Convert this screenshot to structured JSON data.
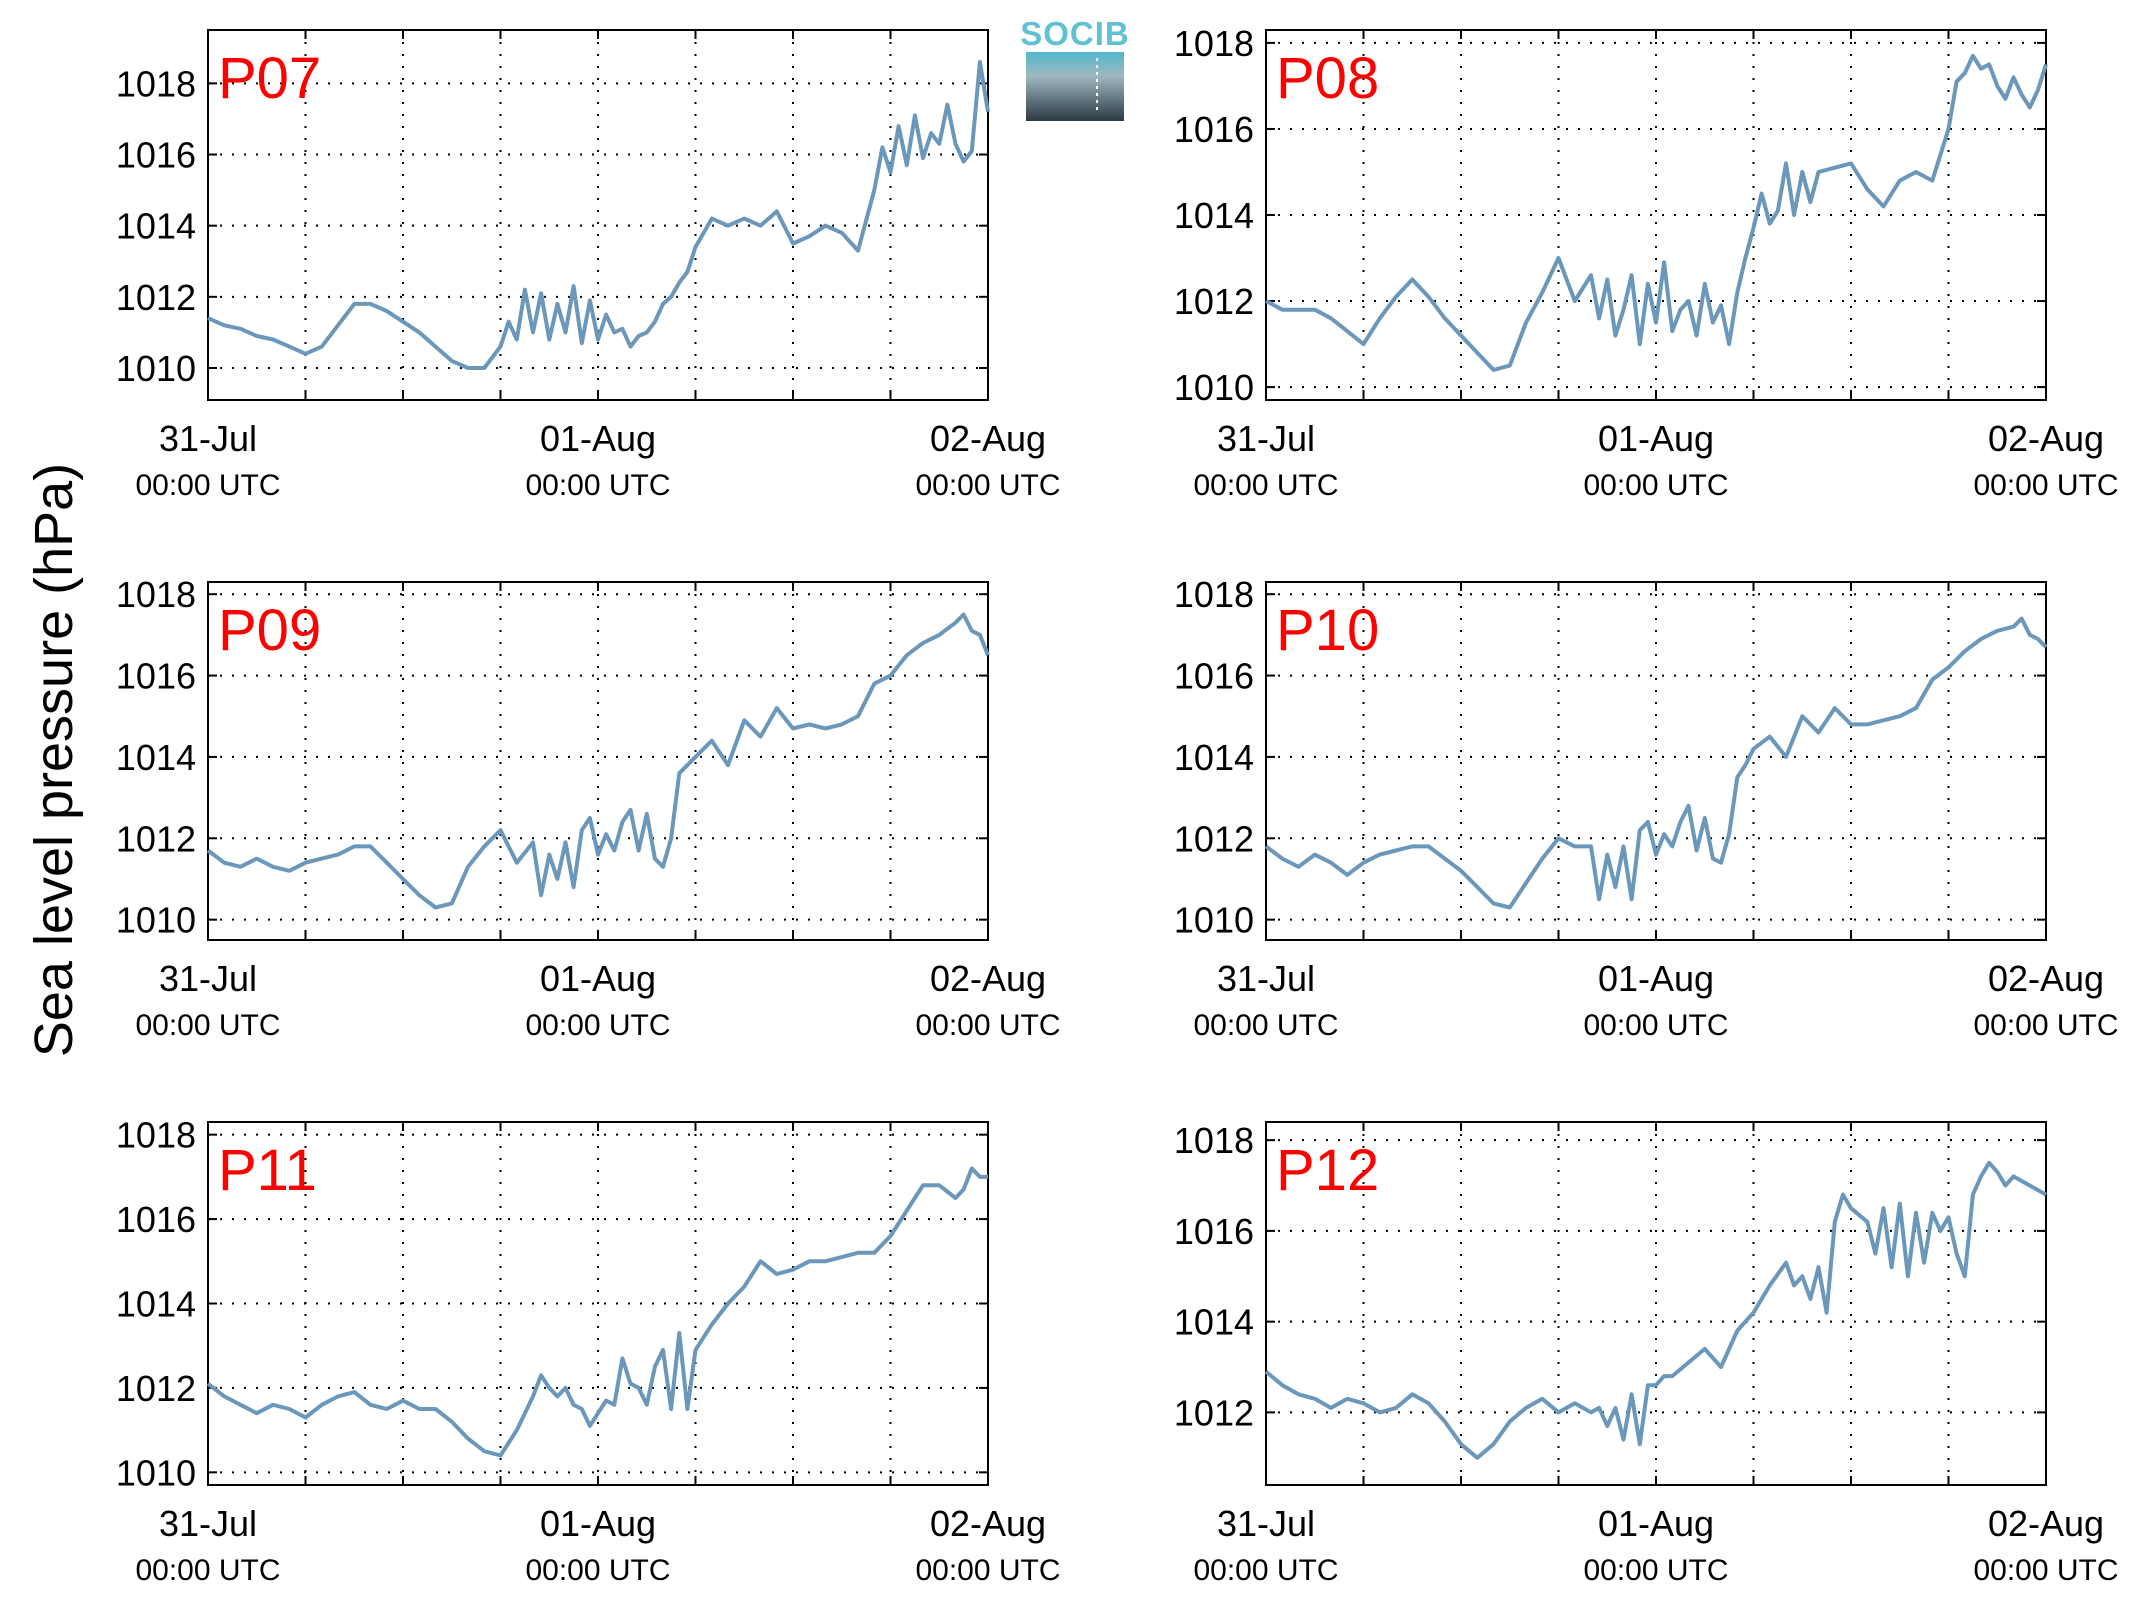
{
  "figure": {
    "ylabel": "Sea level pressure (hPa)",
    "logo_text": "SOCIB",
    "colors": {
      "series": "#6a97ba",
      "panel_label": "#ff0000",
      "logo_top": "#5fc1d4",
      "logo_bottom": "#2b3a44"
    }
  },
  "chart_data": [
    {
      "type": "line",
      "panel_label": "P07",
      "ylim": [
        1009.1,
        1019.5
      ],
      "yticks": [
        1010,
        1012,
        1014,
        1016,
        1018
      ],
      "xlim": [
        0,
        48
      ],
      "xticks": [
        {
          "top": "31-Jul",
          "bottom": "00:00 UTC"
        },
        {
          "top": "01-Aug",
          "bottom": "00:00 UTC"
        },
        {
          "top": "02-Aug",
          "bottom": "00:00 UTC"
        }
      ],
      "grid": true,
      "series": [
        {
          "x": [
            0,
            1,
            2,
            3,
            4,
            5,
            6,
            7,
            8,
            9,
            10,
            11,
            12,
            13,
            14,
            15,
            16,
            17,
            18,
            18.5,
            19,
            19.5,
            20,
            20.5,
            21,
            21.5,
            22,
            22.5,
            23,
            23.5,
            24,
            24.5,
            25,
            25.5,
            26,
            26.5,
            27,
            27.5,
            28,
            28.5,
            29,
            29.5,
            30,
            31,
            32,
            33,
            34,
            35,
            36,
            37,
            38,
            39,
            40,
            41,
            41.5,
            42,
            42.5,
            43,
            43.5,
            44,
            44.5,
            45,
            45.5,
            46,
            46.5,
            47,
            47.5,
            48
          ],
          "y": [
            1011.4,
            1011.2,
            1011.1,
            1010.9,
            1010.8,
            1010.6,
            1010.4,
            1010.6,
            1011.2,
            1011.8,
            1011.8,
            1011.6,
            1011.3,
            1011.0,
            1010.6,
            1010.2,
            1010.0,
            1010.0,
            1010.6,
            1011.3,
            1010.8,
            1012.2,
            1011.0,
            1012.1,
            1010.8,
            1011.8,
            1011.0,
            1012.3,
            1010.7,
            1011.9,
            1010.8,
            1011.5,
            1011.0,
            1011.1,
            1010.6,
            1010.9,
            1011.0,
            1011.3,
            1011.8,
            1012.0,
            1012.4,
            1012.7,
            1013.4,
            1014.2,
            1014.0,
            1014.2,
            1014.0,
            1014.4,
            1013.5,
            1013.7,
            1014.0,
            1013.8,
            1013.3,
            1015.0,
            1016.2,
            1015.5,
            1016.8,
            1015.7,
            1017.1,
            1015.9,
            1016.6,
            1016.3,
            1017.4,
            1016.3,
            1015.8,
            1016.1,
            1018.6,
            1017.2
          ]
        }
      ]
    },
    {
      "type": "line",
      "panel_label": "P08",
      "ylim": [
        1009.7,
        1018.3
      ],
      "yticks": [
        1010,
        1012,
        1014,
        1016,
        1018
      ],
      "xlim": [
        0,
        48
      ],
      "xticks": [
        {
          "top": "31-Jul",
          "bottom": "00:00 UTC"
        },
        {
          "top": "01-Aug",
          "bottom": "00:00 UTC"
        },
        {
          "top": "02-Aug",
          "bottom": "00:00 UTC"
        }
      ],
      "grid": true,
      "series": [
        {
          "x": [
            0,
            1,
            2,
            3,
            4,
            5,
            6,
            7,
            8,
            9,
            10,
            11,
            12,
            13,
            14,
            15,
            16,
            17,
            18,
            19,
            20,
            20.5,
            21,
            21.5,
            22,
            22.5,
            23,
            23.5,
            24,
            24.5,
            25,
            25.5,
            26,
            26.5,
            27,
            27.5,
            28,
            28.5,
            29,
            29.5,
            30,
            30.5,
            31,
            31.5,
            32,
            32.5,
            33,
            33.5,
            34,
            35,
            36,
            37,
            38,
            39,
            40,
            41,
            42,
            42.5,
            43,
            43.5,
            44,
            44.5,
            45,
            45.5,
            46,
            46.5,
            47,
            47.5,
            48
          ],
          "y": [
            1012.0,
            1011.8,
            1011.8,
            1011.8,
            1011.6,
            1011.3,
            1011.0,
            1011.6,
            1012.1,
            1012.5,
            1012.1,
            1011.6,
            1011.2,
            1010.8,
            1010.4,
            1010.5,
            1011.5,
            1012.2,
            1013.0,
            1012.0,
            1012.6,
            1011.6,
            1012.5,
            1011.2,
            1011.8,
            1012.6,
            1011.0,
            1012.4,
            1011.5,
            1012.9,
            1011.3,
            1011.8,
            1012.0,
            1011.2,
            1012.4,
            1011.5,
            1011.9,
            1011.0,
            1012.2,
            1013.0,
            1013.7,
            1014.5,
            1013.8,
            1014.1,
            1015.2,
            1014.0,
            1015.0,
            1014.3,
            1015.0,
            1015.1,
            1015.2,
            1014.6,
            1014.2,
            1014.8,
            1015.0,
            1014.8,
            1016.0,
            1017.1,
            1017.3,
            1017.7,
            1017.4,
            1017.5,
            1017.0,
            1016.7,
            1017.2,
            1016.8,
            1016.5,
            1016.9,
            1017.5
          ]
        }
      ]
    },
    {
      "type": "line",
      "panel_label": "P09",
      "ylim": [
        1009.5,
        1018.3
      ],
      "yticks": [
        1010,
        1012,
        1014,
        1016,
        1018
      ],
      "xlim": [
        0,
        48
      ],
      "xticks": [
        {
          "top": "31-Jul",
          "bottom": "00:00 UTC"
        },
        {
          "top": "01-Aug",
          "bottom": "00:00 UTC"
        },
        {
          "top": "02-Aug",
          "bottom": "00:00 UTC"
        }
      ],
      "grid": true,
      "series": [
        {
          "x": [
            0,
            1,
            2,
            3,
            4,
            5,
            6,
            7,
            8,
            9,
            10,
            11,
            12,
            13,
            14,
            15,
            16,
            17,
            18,
            19,
            20,
            20.5,
            21,
            21.5,
            22,
            22.5,
            23,
            23.5,
            24,
            24.5,
            25,
            25.5,
            26,
            26.5,
            27,
            27.5,
            28,
            28.5,
            29,
            29.5,
            30,
            31,
            32,
            33,
            34,
            35,
            36,
            37,
            38,
            39,
            40,
            41,
            42,
            43,
            44,
            45,
            46,
            46.5,
            47,
            47.5,
            48
          ],
          "y": [
            1011.7,
            1011.4,
            1011.3,
            1011.5,
            1011.3,
            1011.2,
            1011.4,
            1011.5,
            1011.6,
            1011.8,
            1011.8,
            1011.4,
            1011.0,
            1010.6,
            1010.3,
            1010.4,
            1011.3,
            1011.8,
            1012.2,
            1011.4,
            1011.9,
            1010.6,
            1011.6,
            1011.0,
            1011.9,
            1010.8,
            1012.2,
            1012.5,
            1011.6,
            1012.1,
            1011.7,
            1012.4,
            1012.7,
            1011.7,
            1012.6,
            1011.5,
            1011.3,
            1012.0,
            1013.6,
            1013.8,
            1014.0,
            1014.4,
            1013.8,
            1014.9,
            1014.5,
            1015.2,
            1014.7,
            1014.8,
            1014.7,
            1014.8,
            1015.0,
            1015.8,
            1016.0,
            1016.5,
            1016.8,
            1017.0,
            1017.3,
            1017.5,
            1017.1,
            1017.0,
            1016.5
          ]
        }
      ]
    },
    {
      "type": "line",
      "panel_label": "P10",
      "ylim": [
        1009.5,
        1018.3
      ],
      "yticks": [
        1010,
        1012,
        1014,
        1016,
        1018
      ],
      "xlim": [
        0,
        48
      ],
      "xticks": [
        {
          "top": "31-Jul",
          "bottom": "00:00 UTC"
        },
        {
          "top": "01-Aug",
          "bottom": "00:00 UTC"
        },
        {
          "top": "02-Aug",
          "bottom": "00:00 UTC"
        }
      ],
      "grid": true,
      "series": [
        {
          "x": [
            0,
            1,
            2,
            3,
            4,
            5,
            6,
            7,
            8,
            9,
            10,
            11,
            12,
            13,
            14,
            15,
            16,
            17,
            18,
            19,
            20,
            20.5,
            21,
            21.5,
            22,
            22.5,
            23,
            23.5,
            24,
            24.5,
            25,
            25.5,
            26,
            26.5,
            27,
            27.5,
            28,
            28.5,
            29,
            29.5,
            30,
            31,
            32,
            33,
            34,
            35,
            36,
            37,
            38,
            39,
            40,
            41,
            42,
            43,
            44,
            45,
            46,
            46.5,
            47,
            47.5,
            48
          ],
          "y": [
            1011.8,
            1011.5,
            1011.3,
            1011.6,
            1011.4,
            1011.1,
            1011.4,
            1011.6,
            1011.7,
            1011.8,
            1011.8,
            1011.5,
            1011.2,
            1010.8,
            1010.4,
            1010.3,
            1010.9,
            1011.5,
            1012.0,
            1011.8,
            1011.8,
            1010.5,
            1011.6,
            1010.8,
            1011.8,
            1010.5,
            1012.2,
            1012.4,
            1011.6,
            1012.1,
            1011.8,
            1012.4,
            1012.8,
            1011.7,
            1012.5,
            1011.5,
            1011.4,
            1012.1,
            1013.5,
            1013.8,
            1014.2,
            1014.5,
            1014.0,
            1015.0,
            1014.6,
            1015.2,
            1014.8,
            1014.8,
            1014.9,
            1015.0,
            1015.2,
            1015.9,
            1016.2,
            1016.6,
            1016.9,
            1017.1,
            1017.2,
            1017.4,
            1017.0,
            1016.9,
            1016.7
          ]
        }
      ]
    },
    {
      "type": "line",
      "panel_label": "P11",
      "ylim": [
        1009.7,
        1018.3
      ],
      "yticks": [
        1010,
        1012,
        1014,
        1016,
        1018
      ],
      "xlim": [
        0,
        48
      ],
      "xticks": [
        {
          "top": "31-Jul",
          "bottom": "00:00 UTC"
        },
        {
          "top": "01-Aug",
          "bottom": "00:00 UTC"
        },
        {
          "top": "02-Aug",
          "bottom": "00:00 UTC"
        }
      ],
      "grid": true,
      "series": [
        {
          "x": [
            0,
            1,
            2,
            3,
            4,
            5,
            6,
            7,
            8,
            9,
            10,
            11,
            12,
            13,
            14,
            15,
            16,
            17,
            18,
            19,
            20,
            20.5,
            21,
            21.5,
            22,
            22.5,
            23,
            23.5,
            24,
            24.5,
            25,
            25.5,
            26,
            26.5,
            27,
            27.5,
            28,
            28.5,
            29,
            29.5,
            30,
            31,
            32,
            33,
            34,
            35,
            36,
            37,
            38,
            39,
            40,
            41,
            42,
            43,
            44,
            45,
            46,
            46.5,
            47,
            47.5,
            48
          ],
          "y": [
            1012.1,
            1011.8,
            1011.6,
            1011.4,
            1011.6,
            1011.5,
            1011.3,
            1011.6,
            1011.8,
            1011.9,
            1011.6,
            1011.5,
            1011.7,
            1011.5,
            1011.5,
            1011.2,
            1010.8,
            1010.5,
            1010.4,
            1011.0,
            1011.8,
            1012.3,
            1012.0,
            1011.8,
            1012.0,
            1011.6,
            1011.5,
            1011.1,
            1011.4,
            1011.7,
            1011.6,
            1012.7,
            1012.1,
            1012.0,
            1011.6,
            1012.5,
            1012.9,
            1011.5,
            1013.3,
            1011.5,
            1012.9,
            1013.5,
            1014.0,
            1014.4,
            1015.0,
            1014.7,
            1014.8,
            1015.0,
            1015.0,
            1015.1,
            1015.2,
            1015.2,
            1015.6,
            1016.2,
            1016.8,
            1016.8,
            1016.5,
            1016.7,
            1017.2,
            1017.0,
            1017.0
          ]
        }
      ]
    },
    {
      "type": "line",
      "panel_label": "P12",
      "ylim": [
        1010.4,
        1018.4
      ],
      "yticks": [
        1012,
        1014,
        1016,
        1018
      ],
      "xlim": [
        0,
        48
      ],
      "xticks": [
        {
          "top": "31-Jul",
          "bottom": "00:00 UTC"
        },
        {
          "top": "01-Aug",
          "bottom": "00:00 UTC"
        },
        {
          "top": "02-Aug",
          "bottom": "00:00 UTC"
        }
      ],
      "grid": true,
      "series": [
        {
          "x": [
            0,
            1,
            2,
            3,
            4,
            5,
            6,
            7,
            8,
            9,
            10,
            11,
            12,
            13,
            14,
            15,
            16,
            17,
            18,
            19,
            20,
            20.5,
            21,
            21.5,
            22,
            22.5,
            23,
            23.5,
            24,
            24.5,
            25,
            26,
            27,
            28,
            29,
            30,
            31,
            32,
            32.5,
            33,
            33.5,
            34,
            34.5,
            35,
            35.5,
            36,
            37,
            37.5,
            38,
            38.5,
            39,
            39.5,
            40,
            40.5,
            41,
            41.5,
            42,
            42.5,
            43,
            43.5,
            44,
            44.5,
            45,
            45.5,
            46,
            46.5,
            47,
            47.5,
            48
          ],
          "y": [
            1012.9,
            1012.6,
            1012.4,
            1012.3,
            1012.1,
            1012.3,
            1012.2,
            1012.0,
            1012.1,
            1012.4,
            1012.2,
            1011.8,
            1011.3,
            1011.0,
            1011.3,
            1011.8,
            1012.1,
            1012.3,
            1012.0,
            1012.2,
            1012.0,
            1012.1,
            1011.7,
            1012.1,
            1011.4,
            1012.4,
            1011.3,
            1012.6,
            1012.6,
            1012.8,
            1012.8,
            1013.1,
            1013.4,
            1013.0,
            1013.8,
            1014.2,
            1014.8,
            1015.3,
            1014.8,
            1015.0,
            1014.5,
            1015.2,
            1014.2,
            1016.2,
            1016.8,
            1016.5,
            1016.2,
            1015.5,
            1016.5,
            1015.2,
            1016.6,
            1015.0,
            1016.4,
            1015.3,
            1016.4,
            1016.0,
            1016.3,
            1015.5,
            1015.0,
            1016.8,
            1017.2,
            1017.5,
            1017.3,
            1017.0,
            1017.2,
            1017.1,
            1017.0,
            1016.9,
            1016.8
          ]
        }
      ]
    }
  ]
}
